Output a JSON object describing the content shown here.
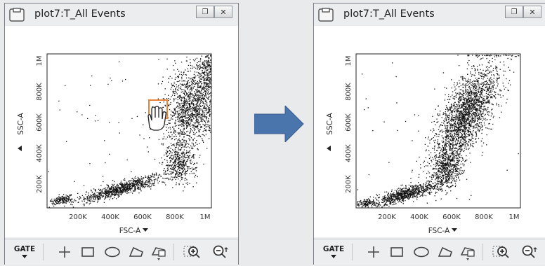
{
  "windows": [
    {
      "id": "before",
      "title": "plot7:T_All Events",
      "x_axis_label": "FSC-A",
      "y_axis_label": "SSC-A",
      "x_ticks": [
        "200K",
        "400K",
        "600K",
        "800K",
        "1M"
      ],
      "y_ticks": [
        "200K",
        "400K",
        "600K",
        "800K",
        "1M"
      ],
      "gate_label": "GATE",
      "state": "pan cursor with highlighted region"
    },
    {
      "id": "after",
      "title": "plot7:T_All Events",
      "x_axis_label": "FSC-A",
      "y_axis_label": "SSC-A",
      "x_ticks": [
        "200K",
        "400K",
        "600K",
        "800K",
        "1M"
      ],
      "y_ticks": [
        "200K",
        "400K",
        "600K",
        "800K",
        "1M"
      ],
      "gate_label": "GATE",
      "state": "panned view"
    }
  ],
  "window_buttons": {
    "restore_icon": "restore-icon",
    "close_icon": "close-icon"
  },
  "toolbar_icons": [
    "gate-icon",
    "crosshair-icon",
    "rectangle-gate-icon",
    "ellipse-gate-icon",
    "polygon-gate-icon",
    "cursor-gate-icon",
    "zoom-in-icon",
    "zoom-out-icon"
  ],
  "colors": {
    "arrow": "#4a74ac",
    "highlight_box": "#e8833a",
    "dots": "#111111"
  }
}
